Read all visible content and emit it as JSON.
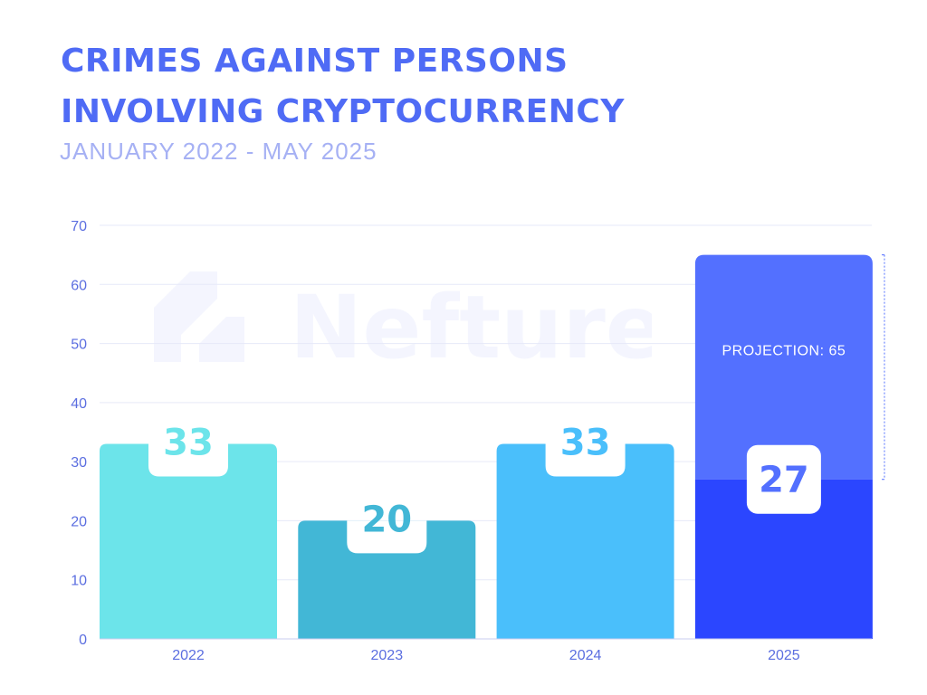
{
  "title_lines": [
    "CRIMES AGAINST PERSONS",
    "INVOLVING CRYPTOCURRENCY"
  ],
  "subtitle": "JANUARY 2022 - MAY 2025",
  "watermark_text": "Nefture",
  "colors": {
    "title": "#4F6BF5",
    "subtitle": "#A6B1F4",
    "axis_text": "#5B6EE0",
    "grid": "#E6E9F8",
    "bar_2022": "#6CE4EA",
    "bar_2023": "#42B7D6",
    "bar_2024": "#4ABFFB",
    "bar_2025": "#2B46FF",
    "projection": "#5370FF"
  },
  "chart_data": {
    "type": "bar",
    "categories": [
      "2022",
      "2023",
      "2024",
      "2025"
    ],
    "values": [
      33,
      20,
      33,
      27
    ],
    "ylim": [
      0,
      70
    ],
    "yticks": [
      0,
      10,
      20,
      30,
      40,
      50,
      60,
      70
    ],
    "grid": true,
    "projection": {
      "category": "2025",
      "value": 65,
      "label": "PROJECTION: 65"
    },
    "data_labels": [
      "33",
      "20",
      "33",
      "27"
    ]
  }
}
